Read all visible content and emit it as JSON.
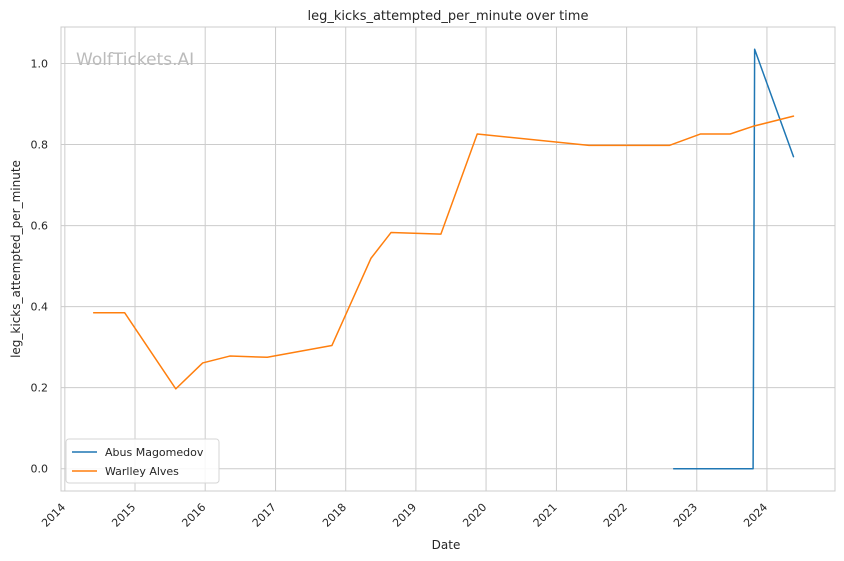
{
  "watermark": "WolfTickets.AI",
  "chart_data": {
    "type": "line",
    "title": "leg_kicks_attempted_per_minute over time",
    "xlabel": "Date",
    "ylabel": "leg_kicks_attempted_per_minute",
    "x_ticks": [
      "2014",
      "2015",
      "2016",
      "2017",
      "2018",
      "2019",
      "2020",
      "2021",
      "2022",
      "2023",
      "2024"
    ],
    "y_ticks": [
      "0.0",
      "0.2",
      "0.4",
      "0.6",
      "0.8",
      "1.0"
    ],
    "ylim": [
      -0.055,
      1.09
    ],
    "xlim": [
      "2013-12-12",
      "2024-12-20"
    ],
    "grid": true,
    "legend_position": "lower-left",
    "series": [
      {
        "name": "Abus Magomedov",
        "color": "#1f77b4",
        "points": [
          [
            "2022-09-03",
            0.0
          ],
          [
            "2023-06-24",
            0.0
          ],
          [
            "2023-10-21",
            0.0
          ],
          [
            "2023-10-29",
            1.035
          ],
          [
            "2024-05-18",
            0.77
          ]
        ]
      },
      {
        "name": "Warlley Alves",
        "color": "#ff7f0e",
        "points": [
          [
            "2014-05-31",
            0.385
          ],
          [
            "2014-11-08",
            0.385
          ],
          [
            "2015-08-01",
            0.197
          ],
          [
            "2015-12-19",
            0.261
          ],
          [
            "2016-05-08",
            0.278
          ],
          [
            "2016-11-19",
            0.275
          ],
          [
            "2017-10-21",
            0.304
          ],
          [
            "2018-05-12",
            0.519
          ],
          [
            "2018-08-25",
            0.583
          ],
          [
            "2019-05-11",
            0.579
          ],
          [
            "2019-11-16",
            0.826
          ],
          [
            "2021-06-19",
            0.798
          ],
          [
            "2022-08-13",
            0.798
          ],
          [
            "2023-01-21",
            0.826
          ],
          [
            "2023-06-24",
            0.826
          ],
          [
            "2023-10-21",
            0.845
          ],
          [
            "2024-05-18",
            0.87
          ]
        ]
      }
    ]
  }
}
